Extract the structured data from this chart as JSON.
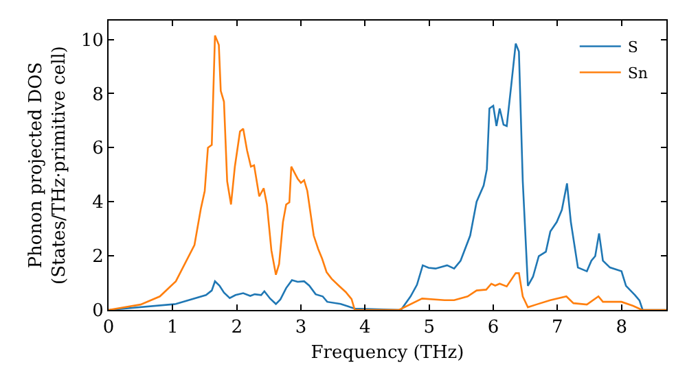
{
  "chart_data": {
    "type": "line",
    "xlabel": "Frequency (THz)",
    "ylabel": "Phonon projected DOS\n(States/THz·primitive cell)",
    "xlim": [
      0,
      8.7
    ],
    "ylim": [
      0,
      10.7
    ],
    "xticks": [
      0,
      1,
      2,
      3,
      4,
      5,
      6,
      7,
      8
    ],
    "yticks": [
      0,
      2,
      4,
      6,
      8,
      10
    ],
    "grid": false,
    "legend": "top right",
    "marker": "none",
    "line_style": "solid",
    "series": [
      {
        "name": "S",
        "color": "#1f77b4",
        "x": [
          0,
          1.05,
          1.52,
          1.61,
          1.66,
          1.73,
          1.8,
          1.89,
          1.98,
          2.1,
          2.21,
          2.28,
          2.38,
          2.43,
          2.52,
          2.61,
          2.68,
          2.77,
          2.86,
          2.95,
          3.05,
          3.13,
          3.23,
          3.34,
          3.41,
          3.62,
          3.84,
          4.56,
          4.71,
          4.81,
          4.9,
          4.99,
          5.1,
          5.28,
          5.39,
          5.49,
          5.64,
          5.74,
          5.85,
          5.9,
          5.94,
          6,
          6.05,
          6.1,
          6.16,
          6.21,
          6.28,
          6.35,
          6.4,
          6.46,
          6.54,
          6.62,
          6.71,
          6.82,
          6.89,
          6.99,
          7.07,
          7.15,
          7.21,
          7.32,
          7.46,
          7.53,
          7.59,
          7.65,
          7.71,
          7.82,
          8,
          8.07,
          8.21,
          8.28,
          8.33,
          8.7
        ],
        "values": [
          0,
          0.22,
          0.55,
          0.72,
          1.06,
          0.9,
          0.64,
          0.44,
          0.55,
          0.62,
          0.52,
          0.58,
          0.55,
          0.69,
          0.42,
          0.22,
          0.39,
          0.81,
          1.1,
          1.04,
          1.06,
          0.9,
          0.58,
          0.5,
          0.3,
          0.22,
          0.05,
          0,
          0.5,
          0.93,
          1.65,
          1.56,
          1.53,
          1.65,
          1.53,
          1.82,
          2.75,
          4.0,
          4.6,
          5.2,
          7.45,
          7.55,
          6.8,
          7.45,
          6.85,
          6.8,
          8.3,
          9.85,
          9.55,
          4.76,
          0.89,
          1.23,
          1.99,
          2.15,
          2.9,
          3.25,
          3.7,
          4.68,
          3.25,
          1.57,
          1.43,
          1.82,
          1.99,
          2.83,
          1.82,
          1.57,
          1.43,
          0.89,
          0.55,
          0.35,
          0,
          0
        ]
      },
      {
        "name": "Sn",
        "color": "#ff7f0e",
        "x": [
          0,
          0.5,
          0.8,
          1.05,
          1.34,
          1.44,
          1.5,
          1.55,
          1.61,
          1.66,
          1.72,
          1.75,
          1.8,
          1.85,
          1.91,
          1.97,
          2.05,
          2.1,
          2.16,
          2.22,
          2.27,
          2.35,
          2.42,
          2.47,
          2.54,
          2.61,
          2.66,
          2.72,
          2.77,
          2.82,
          2.85,
          2.95,
          3,
          3.05,
          3.1,
          3.2,
          3.27,
          3.33,
          3.4,
          3.48,
          3.59,
          3.7,
          3.79,
          3.84,
          4.53,
          4.89,
          5.24,
          5.39,
          5.6,
          5.74,
          5.89,
          5.97,
          6.03,
          6.1,
          6.21,
          6.35,
          6.4,
          6.46,
          6.54,
          6.67,
          6.89,
          7.14,
          7.25,
          7.46,
          7.64,
          7.71,
          8,
          8.18,
          8.32,
          8.7
        ],
        "values": [
          0,
          0.2,
          0.5,
          1.06,
          2.4,
          3.75,
          4.4,
          6.0,
          6.1,
          10.15,
          9.8,
          8.1,
          7.7,
          4.76,
          3.9,
          5.3,
          6.6,
          6.7,
          5.9,
          5.3,
          5.35,
          4.2,
          4.5,
          3.9,
          2.2,
          1.3,
          1.7,
          3.25,
          3.9,
          3.98,
          5.3,
          4.85,
          4.7,
          4.8,
          4.4,
          2.75,
          2.25,
          1.9,
          1.4,
          1.15,
          0.9,
          0.66,
          0.4,
          0,
          0,
          0.42,
          0.36,
          0.36,
          0.5,
          0.72,
          0.75,
          0.97,
          0.9,
          0.97,
          0.87,
          1.36,
          1.36,
          0.5,
          0.1,
          0.2,
          0.36,
          0.5,
          0.25,
          0.2,
          0.5,
          0.3,
          0.3,
          0.15,
          0,
          0
        ]
      }
    ]
  }
}
